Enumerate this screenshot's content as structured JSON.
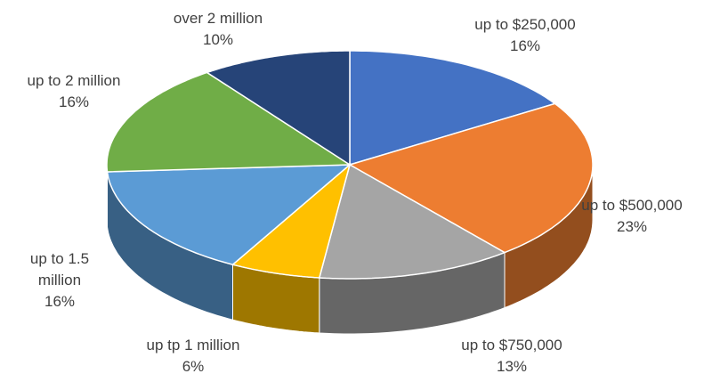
{
  "chart_data": {
    "type": "pie",
    "three_d": true,
    "categories": [
      "up to $250,000",
      "up to $500,000",
      "up to $750,000",
      "up tp 1 million",
      "up to 1.5 million",
      "up to 2 million",
      "over 2 million"
    ],
    "values": [
      16,
      23,
      13,
      6,
      16,
      16,
      10
    ],
    "value_labels": [
      "16%",
      "23%",
      "13%",
      "6%",
      "16%",
      "16%",
      "10%"
    ],
    "colors": [
      "#4472c4",
      "#ed7d31",
      "#a5a5a5",
      "#ffc000",
      "#5b9bd5",
      "#70ad47",
      "#264478"
    ]
  }
}
